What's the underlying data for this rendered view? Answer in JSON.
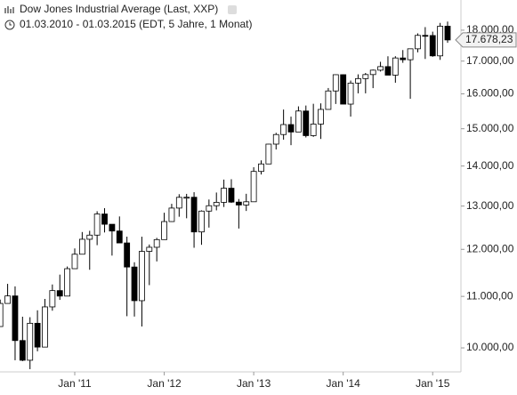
{
  "chart_data": {
    "type": "candlestick",
    "title": "Dow Jones Industrial Average (Last, XXP)",
    "subtitle": "01.03.2010 - 01.03.2015 (EDT, 5 Jahre, 1 Monat)",
    "categories": [
      null,
      null,
      null,
      null,
      null,
      null,
      null,
      null,
      null,
      null,
      "Jan '11",
      null,
      null,
      null,
      null,
      null,
      null,
      null,
      null,
      null,
      null,
      null,
      "Jan '12",
      null,
      null,
      null,
      null,
      null,
      null,
      null,
      null,
      null,
      null,
      null,
      "Jan '13",
      null,
      null,
      null,
      null,
      null,
      null,
      null,
      null,
      null,
      null,
      null,
      "Jan '14",
      null,
      null,
      null,
      null,
      null,
      null,
      null,
      null,
      null,
      null,
      null,
      "Jan '15",
      null,
      null
    ],
    "open": [
      10403,
      10857,
      11009,
      10137,
      9774,
      10466,
      10015,
      10788,
      11118,
      11006,
      11578,
      11892,
      12226,
      12320,
      12811,
      12570,
      12414,
      12143,
      11614,
      10913,
      11955,
      12046,
      12218,
      12633,
      12952,
      13212,
      13214,
      12393,
      12880,
      13009,
      13090,
      13437,
      13096,
      13026,
      13104,
      13861,
      14054,
      14579,
      14840,
      15116,
      14910,
      15500,
      14810,
      15130,
      15546,
      16086,
      16577,
      15699,
      16322,
      16458,
      16581,
      16717,
      16827,
      16563,
      17098,
      17043,
      17391,
      17828,
      17823,
      17165,
      18133
    ],
    "high": [
      10934,
      11258,
      11205,
      10594,
      10584,
      10720,
      10948,
      11245,
      11452,
      11625,
      12020,
      12391,
      12419,
      12876,
      12950,
      12570,
      12753,
      12285,
      11717,
      12284,
      12108,
      12258,
      12841,
      13055,
      13289,
      13297,
      13338,
      12898,
      13159,
      13330,
      13653,
      13662,
      13171,
      13299,
      13970,
      14149,
      14585,
      14888,
      15542,
      15340,
      15634,
      15658,
      15709,
      15721,
      16174,
      16588,
      16588,
      16398,
      16588,
      16631,
      16736,
      16978,
      17152,
      17154,
      17350,
      17395,
      17895,
      18103,
      17951,
      18244,
      18288
    ],
    "low": [
      10403,
      10856,
      9774,
      9758,
      9614,
      9937,
      10015,
      10712,
      10929,
      11006,
      11578,
      11892,
      11555,
      12093,
      12381,
      11862,
      12143,
      10604,
      10597,
      10404,
      11231,
      11735,
      12218,
      12623,
      12746,
      12710,
      12035,
      12101,
      12493,
      12898,
      12978,
      13076,
      12471,
      12883,
      13104,
      13784,
      14054,
      14435,
      14700,
      14551,
      14910,
      14760,
      14777,
      14719,
      15546,
      15703,
      15699,
      15340,
      16015,
      16015,
      16170,
      16675,
      16563,
      16333,
      16946,
      15855,
      17278,
      17067,
      17136,
      17038,
      17585
    ],
    "close": [
      10857,
      11009,
      10137,
      9774,
      10466,
      10015,
      10788,
      11118,
      11006,
      11578,
      11892,
      12226,
      12320,
      12811,
      12570,
      12414,
      12143,
      11614,
      10913,
      11955,
      12046,
      12218,
      12633,
      12952,
      13212,
      13214,
      12393,
      12880,
      13009,
      13090,
      13437,
      13096,
      13026,
      13104,
      13861,
      14054,
      14579,
      14840,
      15116,
      14910,
      15500,
      14810,
      15130,
      15546,
      16086,
      16577,
      15699,
      16322,
      16458,
      16581,
      16717,
      16827,
      16563,
      17098,
      17043,
      17391,
      17828,
      17823,
      17165,
      18133,
      17678.23
    ],
    "last_price": {
      "value": 17678.23,
      "label": "17.678,23"
    },
    "ylim": [
      9566,
      19034
    ],
    "log_scale": true,
    "yticks": [
      {
        "value": 10000,
        "label": "10.000,00"
      },
      {
        "value": 11000,
        "label": "11.000,00"
      },
      {
        "value": 12000,
        "label": "12.000,00"
      },
      {
        "value": 13000,
        "label": "13.000,00"
      },
      {
        "value": 14000,
        "label": "14.000,00"
      },
      {
        "value": 15000,
        "label": "15.000,00"
      },
      {
        "value": 16000,
        "label": "16.000,00"
      },
      {
        "value": 17000,
        "label": "17.000,00"
      },
      {
        "value": 18000,
        "label": "18.000,00"
      }
    ],
    "up_color": "#ffffff",
    "down_color": "#000000"
  }
}
